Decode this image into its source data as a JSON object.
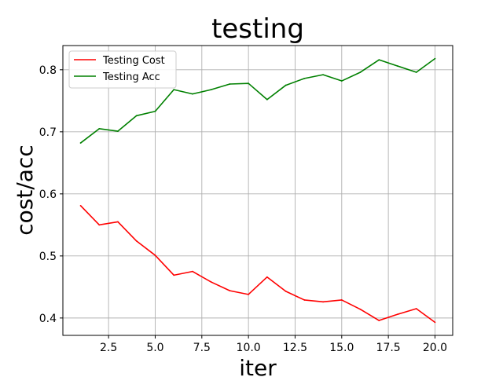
{
  "chart_data": {
    "type": "line",
    "title": "testing",
    "xlabel": "iter",
    "ylabel": "cost/acc",
    "x": [
      1,
      2,
      3,
      4,
      5,
      6,
      7,
      8,
      9,
      10,
      11,
      12,
      13,
      14,
      15,
      16,
      17,
      18,
      19,
      20
    ],
    "series": [
      {
        "name": "Testing Cost",
        "color": "#ff0000",
        "values": [
          0.581,
          0.55,
          0.555,
          0.524,
          0.501,
          0.469,
          0.475,
          0.458,
          0.444,
          0.438,
          0.466,
          0.443,
          0.429,
          0.426,
          0.429,
          0.414,
          0.396,
          0.406,
          0.415,
          0.393
        ]
      },
      {
        "name": "Testing Acc",
        "color": "#008000",
        "values": [
          0.682,
          0.705,
          0.701,
          0.726,
          0.733,
          0.768,
          0.761,
          0.768,
          0.777,
          0.778,
          0.752,
          0.775,
          0.786,
          0.792,
          0.782,
          0.796,
          0.816,
          0.806,
          0.796,
          0.818
        ]
      }
    ],
    "xlim": [
      0.05,
      20.95
    ],
    "ylim": [
      0.372,
      0.839
    ],
    "xticks": [
      2.5,
      5.0,
      7.5,
      10.0,
      12.5,
      15.0,
      17.5,
      20.0
    ],
    "xtick_labels": [
      "2.5",
      "5.0",
      "7.5",
      "10.0",
      "12.5",
      "15.0",
      "17.5",
      "20.0"
    ],
    "yticks": [
      0.4,
      0.5,
      0.6,
      0.7,
      0.8
    ],
    "ytick_labels": [
      "0.4",
      "0.5",
      "0.6",
      "0.7",
      "0.8"
    ],
    "grid": true,
    "legend": "upper-left"
  }
}
